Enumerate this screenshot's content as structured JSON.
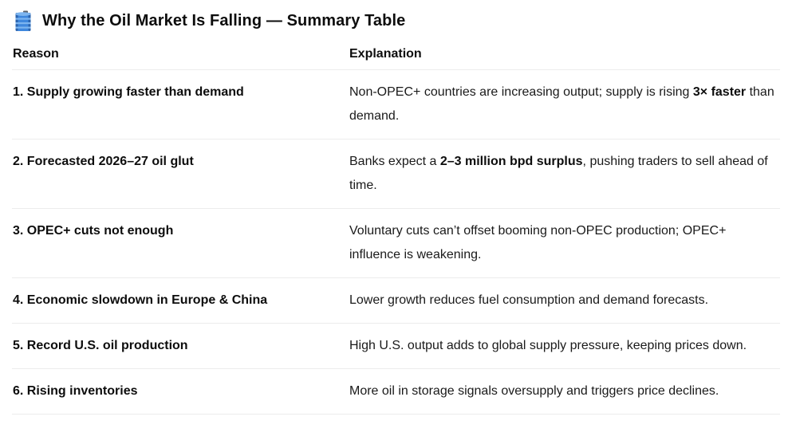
{
  "header": {
    "icon": "oil-drum-icon",
    "title": "Why the Oil Market Is Falling — Summary Table"
  },
  "table": {
    "columns": [
      "Reason",
      "Explanation"
    ],
    "rows": [
      {
        "reason": "1. Supply growing faster than demand",
        "explanation": [
          {
            "text": "Non-OPEC+ countries are increasing output; supply is rising ",
            "bold": false
          },
          {
            "text": "3× faster",
            "bold": true
          },
          {
            "text": " than demand.",
            "bold": false
          }
        ]
      },
      {
        "reason": "2. Forecasted 2026–27 oil glut",
        "explanation": [
          {
            "text": "Banks expect a ",
            "bold": false
          },
          {
            "text": "2–3 million bpd surplus",
            "bold": true
          },
          {
            "text": ", pushing traders to sell ahead of time.",
            "bold": false
          }
        ]
      },
      {
        "reason": "3. OPEC+ cuts not enough",
        "explanation": [
          {
            "text": "Voluntary cuts can’t offset booming non-OPEC production; OPEC+ influence is weakening.",
            "bold": false
          }
        ]
      },
      {
        "reason": "4. Economic slowdown in Europe & China",
        "explanation": [
          {
            "text": "Lower growth reduces fuel consumption and demand forecasts.",
            "bold": false
          }
        ]
      },
      {
        "reason": "5. Record U.S. oil production",
        "explanation": [
          {
            "text": "High U.S. output adds to global supply pressure, keeping prices down.",
            "bold": false
          }
        ]
      },
      {
        "reason": "6. Rising inventories",
        "explanation": [
          {
            "text": "More oil in storage signals oversupply and triggers price declines.",
            "bold": false
          }
        ]
      }
    ]
  },
  "colors": {
    "text": "#0d0d0d",
    "border": "#ececec",
    "background": "#ffffff",
    "barrel_blue": "#3e87dd",
    "barrel_light": "#7db5ef",
    "barrel_dark": "#2b63ad"
  }
}
